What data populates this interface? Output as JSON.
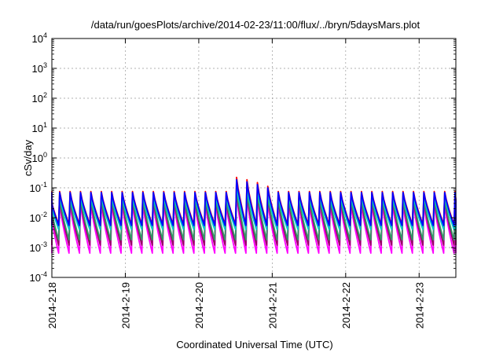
{
  "chart_data": {
    "type": "line",
    "title": "/data/run/goesPlots/archive/2014-02-23/11:00/flux/../bryn/5daysMars.plot",
    "xlabel": "Coordinated Universal Time (UTC)",
    "ylabel": "cSv/day",
    "yscale": "log",
    "ylim": [
      0.0001,
      10000
    ],
    "xlim": [
      "2014-02-18T00:00",
      "2014-02-23T12:00"
    ],
    "x_tick_labels": [
      "2014-2-18",
      "2014-2-19",
      "2014-2-20",
      "2014-2-21",
      "2014-2-22",
      "2014-2-23"
    ],
    "y_tick_labels": [
      {
        "base": "10",
        "exp": "-4"
      },
      {
        "base": "10",
        "exp": "-3"
      },
      {
        "base": "10",
        "exp": "-2"
      },
      {
        "base": "10",
        "exp": "-1"
      },
      {
        "base": "10",
        "exp": "0"
      },
      {
        "base": "10",
        "exp": "1"
      },
      {
        "base": "10",
        "exp": "2"
      },
      {
        "base": "10",
        "exp": "3"
      },
      {
        "base": "10",
        "exp": "4"
      }
    ],
    "grid": true,
    "legend": "none",
    "pattern": {
      "description_period_hours": 3.4,
      "event_start": "2014-02-20T11:00",
      "event_end": "2014-02-21T02:00"
    },
    "series": [
      {
        "color": "#ff00ff",
        "peak": 0.03,
        "trough": 0.00065,
        "event_peak": 0.06
      },
      {
        "color": "#990066",
        "peak": 0.04,
        "trough": 0.0012,
        "event_peak": 0.08
      },
      {
        "color": "#339966",
        "peak": 0.045,
        "trough": 0.0018,
        "event_peak": 0.09
      },
      {
        "color": "#00cccc",
        "peak": 0.055,
        "trough": 0.004,
        "event_peak": 0.12
      },
      {
        "color": "#ff0000",
        "peak": 0.075,
        "trough": 0.006,
        "event_peak": 0.24
      },
      {
        "color": "#0000ff",
        "peak": 0.07,
        "trough": 0.0055,
        "event_peak": 0.2
      }
    ]
  }
}
